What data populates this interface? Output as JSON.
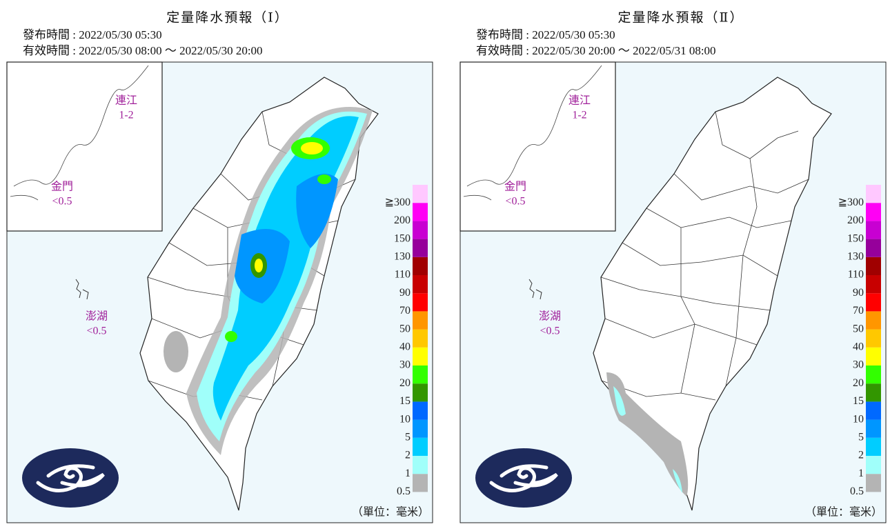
{
  "panels": [
    {
      "title": "定量降水預報（Ⅰ）",
      "issued": "發布時間 : 2022/05/30 05:30",
      "valid": "有效時間 : 2022/05/30 08:00 ～ 2022/05/30 20:00",
      "islands": [
        {
          "name": "連江",
          "amount": "1-2"
        },
        {
          "name": "金門",
          "amount": "<0.5"
        },
        {
          "name": "澎湖",
          "amount": "<0.5"
        }
      ]
    },
    {
      "title": "定量降水預報（Ⅱ）",
      "issued": "發布時間 : 2022/05/30 05:30",
      "valid": "有效時間 : 2022/05/30 20:00 ～ 2022/05/31 08:00",
      "islands": [
        {
          "name": "連江",
          "amount": "1-2"
        },
        {
          "name": "金門",
          "amount": "<0.5"
        },
        {
          "name": "澎湖",
          "amount": "<0.5"
        }
      ]
    }
  ],
  "legend": {
    "labels": [
      "0.5",
      "1",
      "2",
      "5",
      "10",
      "15",
      "20",
      "30",
      "40",
      "50",
      "70",
      "90",
      "110",
      "130",
      "150",
      "200",
      "≧300"
    ],
    "colors": [
      "#b4b4b4",
      "#a0fffa",
      "#00cdff",
      "#0096ff",
      "#0069ff",
      "#329600",
      "#32ff00",
      "#ffff00",
      "#ffc800",
      "#ff9600",
      "#ff0000",
      "#c80000",
      "#a00000",
      "#96009b",
      "#c800d2",
      "#ff00f5",
      "#ffc8ff"
    ],
    "unit": "（單位：毫米）"
  }
}
